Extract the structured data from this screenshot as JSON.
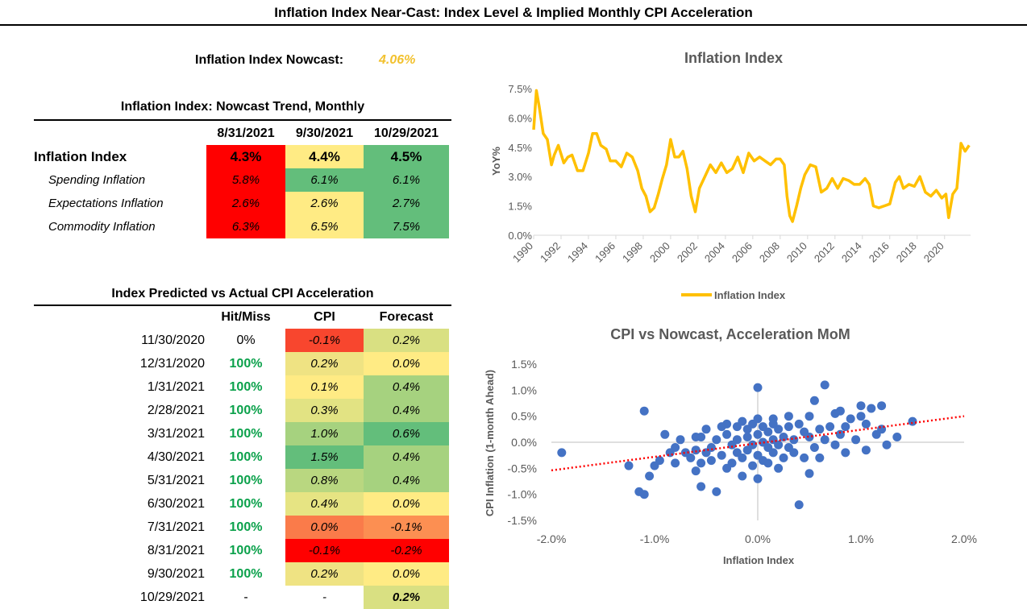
{
  "page_title": "Inflation Index Near-Cast: Index Level & Implied Monthly CPI Acceleration",
  "nowcast": {
    "label": "Inflation Index Nowcast:",
    "value": "4.06%"
  },
  "trend_table": {
    "title": "Inflation Index: Nowcast Trend, Monthly",
    "columns": [
      "8/31/2021",
      "9/30/2021",
      "10/29/2021"
    ],
    "rows": [
      {
        "label": "Inflation Index",
        "values": [
          "4.3%",
          "4.4%",
          "4.5%"
        ],
        "colors": [
          "#FF0000",
          "#FFEB84",
          "#63BE7B"
        ]
      },
      {
        "label": "Spending Inflation",
        "values": [
          "5.8%",
          "6.1%",
          "6.1%"
        ],
        "colors": [
          "#FF0000",
          "#63BE7B",
          "#63BE7B"
        ]
      },
      {
        "label": "Expectations Inflation",
        "values": [
          "2.6%",
          "2.6%",
          "2.7%"
        ],
        "colors": [
          "#FF0000",
          "#FFEB84",
          "#63BE7B"
        ]
      },
      {
        "label": "Commodity Inflation",
        "values": [
          "6.3%",
          "6.5%",
          "7.5%"
        ],
        "colors": [
          "#FF0000",
          "#FFEB84",
          "#63BE7B"
        ]
      }
    ]
  },
  "accel_table": {
    "title": "Index Predicted vs Actual CPI Acceleration",
    "columns": [
      "Hit/Miss",
      "CPI",
      "Forecast"
    ],
    "rows": [
      {
        "date": "11/30/2020",
        "hit": "0%",
        "cpi": "-0.1%",
        "forecast": "0.2%",
        "cpi_color": "#F8462E",
        "fc_color": "#D9E082"
      },
      {
        "date": "12/31/2020",
        "hit": "100%",
        "cpi": "0.2%",
        "forecast": "0.0%",
        "cpi_color": "#EFE383",
        "fc_color": "#FFEB84"
      },
      {
        "date": "1/31/2021",
        "hit": "100%",
        "cpi": "0.1%",
        "forecast": "0.4%",
        "cpi_color": "#FFEB84",
        "fc_color": "#A6D27F"
      },
      {
        "date": "2/28/2021",
        "hit": "100%",
        "cpi": "0.3%",
        "forecast": "0.4%",
        "cpi_color": "#E2E383",
        "fc_color": "#A6D27F"
      },
      {
        "date": "3/31/2021",
        "hit": "100%",
        "cpi": "1.0%",
        "forecast": "0.6%",
        "cpi_color": "#A6D27F",
        "fc_color": "#63BE7B"
      },
      {
        "date": "4/30/2021",
        "hit": "100%",
        "cpi": "1.5%",
        "forecast": "0.4%",
        "cpi_color": "#63BE7B",
        "fc_color": "#A6D27F"
      },
      {
        "date": "5/31/2021",
        "hit": "100%",
        "cpi": "0.8%",
        "forecast": "0.4%",
        "cpi_color": "#B9D780",
        "fc_color": "#A6D27F"
      },
      {
        "date": "6/30/2021",
        "hit": "100%",
        "cpi": "0.4%",
        "forecast": "0.0%",
        "cpi_color": "#E6E483",
        "fc_color": "#FFEB84"
      },
      {
        "date": "7/31/2021",
        "hit": "100%",
        "cpi": "0.0%",
        "forecast": "-0.1%",
        "cpi_color": "#FA7B4A",
        "fc_color": "#FC8F52"
      },
      {
        "date": "8/31/2021",
        "hit": "100%",
        "cpi": "-0.1%",
        "forecast": "-0.2%",
        "cpi_color": "#FF0000",
        "fc_color": "#FF0000"
      },
      {
        "date": "9/30/2021",
        "hit": "100%",
        "cpi": "0.2%",
        "forecast": "0.0%",
        "cpi_color": "#EFE383",
        "fc_color": "#FFEB84"
      },
      {
        "date": "10/29/2021",
        "hit": "-",
        "cpi": "-",
        "forecast": "0.2%",
        "cpi_color": "#FFFFFF",
        "fc_color": "#D9E082"
      }
    ]
  },
  "chart_data": [
    {
      "type": "line",
      "title": "Inflation Index",
      "xlabel": "",
      "ylabel": "YoY%",
      "ylim": [
        0,
        7.5
      ],
      "yticks": [
        "0.0%",
        "1.5%",
        "3.0%",
        "4.5%",
        "6.0%",
        "7.5%"
      ],
      "xticks": [
        "1990",
        "1992",
        "1994",
        "1996",
        "1998",
        "2000",
        "2002",
        "2004",
        "2006",
        "2008",
        "2010",
        "2012",
        "2014",
        "2016",
        "2018",
        "2020"
      ],
      "xlim": [
        1990,
        2021.9
      ],
      "legend": "bottom",
      "series": [
        {
          "name": "Inflation Index",
          "color": "#FFC000",
          "x": [
            1990.0,
            1990.2,
            1990.4,
            1990.7,
            1991.0,
            1991.3,
            1991.5,
            1991.8,
            1992.2,
            1992.5,
            1992.8,
            1993.2,
            1993.6,
            1994.0,
            1994.3,
            1994.6,
            1994.9,
            1995.3,
            1995.6,
            1996.0,
            1996.4,
            1996.8,
            1997.2,
            1997.6,
            1997.9,
            1998.2,
            1998.5,
            1998.8,
            1999.1,
            1999.4,
            1999.7,
            2000.0,
            2000.3,
            2000.6,
            2000.9,
            2001.2,
            2001.5,
            2001.8,
            2002.1,
            2002.5,
            2002.9,
            2003.3,
            2003.7,
            2004.1,
            2004.5,
            2004.9,
            2005.3,
            2005.7,
            2006.1,
            2006.5,
            2006.9,
            2007.3,
            2007.7,
            2008.0,
            2008.3,
            2008.5,
            2008.7,
            2008.9,
            2009.2,
            2009.5,
            2009.8,
            2010.2,
            2010.6,
            2011.0,
            2011.4,
            2011.8,
            2012.2,
            2012.6,
            2013.0,
            2013.4,
            2013.8,
            2014.2,
            2014.5,
            2014.8,
            2015.2,
            2015.6,
            2016.0,
            2016.4,
            2016.7,
            2017.0,
            2017.4,
            2017.8,
            2018.2,
            2018.6,
            2019.0,
            2019.4,
            2019.8,
            2020.1,
            2020.3,
            2020.6,
            2020.9,
            2021.2,
            2021.5,
            2021.8
          ],
          "y": [
            5.4,
            7.4,
            6.6,
            5.2,
            4.9,
            3.6,
            4.1,
            4.6,
            3.7,
            4.0,
            4.1,
            3.3,
            3.3,
            4.2,
            5.2,
            5.2,
            4.6,
            4.4,
            3.8,
            3.8,
            3.5,
            4.2,
            4.0,
            3.3,
            2.4,
            2.0,
            1.2,
            1.4,
            2.1,
            2.9,
            3.6,
            4.9,
            4.0,
            4.0,
            4.3,
            3.4,
            2.0,
            1.2,
            2.4,
            3.0,
            3.6,
            3.2,
            3.7,
            3.2,
            3.4,
            4.0,
            3.2,
            4.2,
            3.8,
            4.0,
            3.8,
            3.6,
            3.9,
            3.9,
            3.6,
            2.0,
            1.0,
            0.7,
            1.5,
            2.4,
            3.1,
            3.6,
            3.5,
            2.2,
            2.4,
            2.9,
            2.4,
            2.9,
            2.8,
            2.6,
            2.6,
            2.9,
            2.6,
            1.5,
            1.4,
            1.5,
            1.6,
            2.7,
            3.0,
            2.4,
            2.6,
            2.5,
            3.0,
            2.2,
            2.0,
            2.3,
            1.9,
            2.1,
            0.9,
            2.1,
            2.4,
            4.7,
            4.3,
            4.6
          ]
        }
      ]
    },
    {
      "type": "scatter",
      "title": "CPI vs Nowcast, Acceleration MoM",
      "xlabel": "Inflation Index",
      "ylabel": "CPI Inflation (1-month Ahead)",
      "xlim": [
        -2.0,
        2.0
      ],
      "ylim": [
        -1.5,
        1.5
      ],
      "xticks": [
        "-2.0%",
        "-1.0%",
        "0.0%",
        "1.0%",
        "2.0%"
      ],
      "yticks": [
        "-1.5%",
        "-1.0%",
        "-0.5%",
        "0.0%",
        "0.5%",
        "1.0%",
        "1.5%"
      ],
      "point_color": "#4472C4",
      "trendline": {
        "color": "#FF0000",
        "style": "dotted",
        "x": [
          -2.0,
          2.0
        ],
        "y": [
          -0.54,
          0.5
        ]
      },
      "points": [
        [
          -1.9,
          -0.2
        ],
        [
          -1.25,
          -0.45
        ],
        [
          -1.15,
          -0.95
        ],
        [
          -1.1,
          -1.0
        ],
        [
          -1.1,
          0.6
        ],
        [
          -1.05,
          -0.65
        ],
        [
          -1.0,
          -0.45
        ],
        [
          -0.95,
          -0.35
        ],
        [
          -0.8,
          -0.1
        ],
        [
          -0.85,
          -0.2
        ],
        [
          -0.8,
          -0.4
        ],
        [
          -0.75,
          0.05
        ],
        [
          -0.7,
          -0.2
        ],
        [
          -0.65,
          -0.3
        ],
        [
          -0.6,
          -0.15
        ],
        [
          -0.6,
          -0.55
        ],
        [
          -0.55,
          0.1
        ],
        [
          -0.55,
          -0.4
        ],
        [
          -0.5,
          -0.2
        ],
        [
          -0.55,
          -0.85
        ],
        [
          -0.5,
          0.25
        ],
        [
          -0.45,
          -0.1
        ],
        [
          -0.45,
          -0.35
        ],
        [
          -0.4,
          -0.95
        ],
        [
          -0.4,
          0.05
        ],
        [
          -0.35,
          -0.25
        ],
        [
          -0.35,
          0.3
        ],
        [
          -0.3,
          -0.5
        ],
        [
          -0.3,
          0.15
        ],
        [
          -0.25,
          -0.05
        ],
        [
          -0.25,
          -0.4
        ],
        [
          -0.2,
          0.3
        ],
        [
          -0.2,
          -0.2
        ],
        [
          -0.2,
          0.05
        ],
        [
          -0.15,
          -0.65
        ],
        [
          -0.15,
          0.4
        ],
        [
          -0.15,
          -0.3
        ],
        [
          -0.1,
          0.1
        ],
        [
          -0.1,
          -0.15
        ],
        [
          -0.1,
          0.25
        ],
        [
          -0.05,
          -0.05
        ],
        [
          -0.05,
          -0.45
        ],
        [
          -0.05,
          0.35
        ],
        [
          0.0,
          -0.7
        ],
        [
          0.0,
          0.15
        ],
        [
          0.0,
          -0.25
        ],
        [
          0.0,
          1.05
        ],
        [
          0.0,
          0.45
        ],
        [
          0.05,
          0.0
        ],
        [
          0.05,
          -0.35
        ],
        [
          0.05,
          0.3
        ],
        [
          0.1,
          -0.1
        ],
        [
          0.1,
          0.2
        ],
        [
          0.1,
          -0.4
        ],
        [
          0.15,
          0.05
        ],
        [
          0.15,
          0.35
        ],
        [
          0.15,
          -0.2
        ],
        [
          0.2,
          -0.05
        ],
        [
          0.2,
          0.25
        ],
        [
          0.2,
          -0.5
        ],
        [
          0.25,
          0.1
        ],
        [
          0.25,
          -0.3
        ],
        [
          0.3,
          0.3
        ],
        [
          0.3,
          -0.1
        ],
        [
          0.35,
          0.05
        ],
        [
          0.35,
          -0.2
        ],
        [
          0.4,
          0.35
        ],
        [
          0.4,
          -1.2
        ],
        [
          0.45,
          0.2
        ],
        [
          0.45,
          -0.3
        ],
        [
          0.5,
          0.1
        ],
        [
          0.5,
          0.5
        ],
        [
          0.55,
          0.8
        ],
        [
          0.55,
          -0.1
        ],
        [
          0.6,
          -0.3
        ],
        [
          0.6,
          0.25
        ],
        [
          0.65,
          1.1
        ],
        [
          0.65,
          0.05
        ],
        [
          0.7,
          0.3
        ],
        [
          0.75,
          0.55
        ],
        [
          0.75,
          -0.05
        ],
        [
          0.8,
          0.15
        ],
        [
          0.85,
          0.3
        ],
        [
          0.85,
          -0.2
        ],
        [
          0.9,
          0.45
        ],
        [
          0.95,
          0.05
        ],
        [
          1.0,
          0.5
        ],
        [
          1.05,
          0.35
        ],
        [
          1.05,
          -0.15
        ],
        [
          1.1,
          0.65
        ],
        [
          1.15,
          0.15
        ],
        [
          1.2,
          0.25
        ],
        [
          1.0,
          0.7
        ],
        [
          1.2,
          0.7
        ],
        [
          1.5,
          0.4
        ],
        [
          1.35,
          0.1
        ],
        [
          1.25,
          -0.05
        ],
        [
          -0.9,
          0.15
        ],
        [
          0.5,
          -0.6
        ],
        [
          -0.3,
          0.35
        ],
        [
          0.8,
          0.6
        ],
        [
          0.15,
          0.45
        ],
        [
          -0.6,
          0.1
        ],
        [
          0.3,
          0.5
        ]
      ]
    }
  ]
}
